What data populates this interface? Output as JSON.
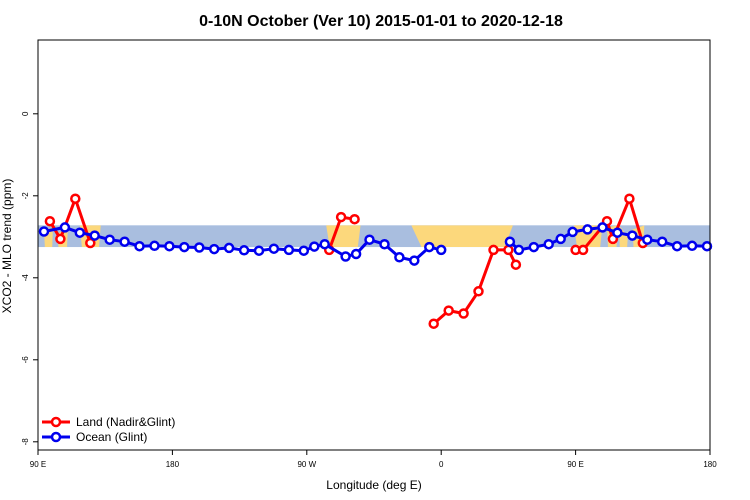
{
  "chart_data": {
    "type": "line",
    "title": "0-10N October (Ver 10)   2015-01-01 to 2020-12-18",
    "xlabel": "Longitude (deg E)",
    "ylabel": "XCO2 - MLO trend (ppm)",
    "xlim": [
      90,
      540
    ],
    "ylim": [
      -8.2,
      1.8
    ],
    "x_ticks": [
      {
        "value": 90,
        "label": "90 E"
      },
      {
        "value": 180,
        "label": "180"
      },
      {
        "value": 270,
        "label": "90 W"
      },
      {
        "value": 360,
        "label": "0"
      },
      {
        "value": 450,
        "label": "90 E"
      },
      {
        "value": 540,
        "label": "180"
      }
    ],
    "y_ticks": [
      {
        "value": 0,
        "label": "0"
      },
      {
        "value": -2,
        "label": "-2"
      },
      {
        "value": -4,
        "label": "-4"
      },
      {
        "value": -6,
        "label": "-6"
      },
      {
        "value": -8,
        "label": "-8"
      }
    ],
    "map_band": {
      "lat_min": 0,
      "lat_max": 10,
      "y_top": -2.72,
      "y_bottom": -3.25
    },
    "colors": {
      "ocean_band": "#a9bedf",
      "land_band": "#fcd87c",
      "land_series": "#ff0000",
      "ocean_series": "#0000ee"
    },
    "legend": {
      "position": "bottom-left"
    },
    "grid": false,
    "series": [
      {
        "name": "Land (Nadir&Glint)",
        "color": "#ff0000",
        "segments": [
          [
            [
              98,
              -2.62
            ],
            [
              105,
              -3.05
            ],
            [
              115,
              -2.07
            ],
            [
              125,
              -3.15
            ]
          ],
          [
            [
              285,
              -3.32
            ],
            [
              293,
              -2.52
            ],
            [
              302,
              -2.57
            ]
          ],
          [
            [
              355,
              -5.12
            ],
            [
              365,
              -4.8
            ],
            [
              375,
              -4.87
            ],
            [
              385,
              -4.33
            ],
            [
              395,
              -3.32
            ],
            [
              405,
              -3.32
            ],
            [
              410,
              -3.68
            ]
          ],
          [
            [
              450,
              -3.32
            ],
            [
              455,
              -3.32
            ],
            [
              471,
              -2.62
            ],
            [
              475,
              -3.05
            ],
            [
              486,
              -2.07
            ],
            [
              495,
              -3.15
            ]
          ]
        ]
      },
      {
        "name": "Ocean (Glint)",
        "color": "#0000ee",
        "points": [
          [
            94,
            -2.87
          ],
          [
            108,
            -2.77
          ],
          [
            118,
            -2.9
          ],
          [
            128,
            -2.97
          ],
          [
            138,
            -3.07
          ],
          [
            148,
            -3.12
          ],
          [
            158,
            -3.23
          ],
          [
            168,
            -3.22
          ],
          [
            178,
            -3.23
          ],
          [
            188,
            -3.25
          ],
          [
            198,
            -3.26
          ],
          [
            208,
            -3.3
          ],
          [
            218,
            -3.27
          ],
          [
            228,
            -3.33
          ],
          [
            238,
            -3.34
          ],
          [
            248,
            -3.29
          ],
          [
            258,
            -3.32
          ],
          [
            268,
            -3.34
          ],
          [
            275,
            -3.24
          ],
          [
            282,
            -3.18
          ],
          [
            296,
            -3.48
          ],
          [
            303,
            -3.42
          ],
          [
            312,
            -3.07
          ],
          [
            322,
            -3.18
          ],
          [
            332,
            -3.5
          ],
          [
            342,
            -3.58
          ],
          [
            352,
            -3.25
          ],
          [
            360,
            -3.32
          ],
          [
            367,
            null
          ],
          [
            378,
            null
          ],
          [
            406,
            -3.12
          ],
          [
            412,
            -3.32
          ],
          [
            422,
            -3.25
          ],
          [
            432,
            -3.18
          ],
          [
            440,
            -3.05
          ],
          [
            448,
            -2.88
          ],
          [
            458,
            -2.82
          ],
          [
            468,
            -2.77
          ],
          [
            478,
            -2.9
          ],
          [
            488,
            -2.97
          ],
          [
            498,
            -3.07
          ],
          [
            508,
            -3.12
          ],
          [
            518,
            -3.23
          ],
          [
            528,
            -3.22
          ],
          [
            538,
            -3.23
          ]
        ]
      }
    ]
  }
}
